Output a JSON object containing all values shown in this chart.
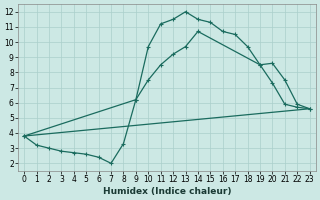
{
  "xlabel": "Humidex (Indice chaleur)",
  "bg_color": "#cce8e4",
  "grid_color": "#aacfcb",
  "line_color": "#1a6b5e",
  "xlim": [
    -0.5,
    23.5
  ],
  "ylim": [
    1.5,
    12.5
  ],
  "xticks": [
    0,
    1,
    2,
    3,
    4,
    5,
    6,
    7,
    8,
    9,
    10,
    11,
    12,
    13,
    14,
    15,
    16,
    17,
    18,
    19,
    20,
    21,
    22,
    23
  ],
  "yticks": [
    2,
    3,
    4,
    5,
    6,
    7,
    8,
    9,
    10,
    11,
    12
  ],
  "curve1_x": [
    0,
    1,
    2,
    3,
    4,
    5,
    6,
    7,
    8,
    9,
    10,
    11,
    12,
    13,
    14,
    15,
    16,
    17,
    18,
    19,
    20,
    21,
    22,
    23
  ],
  "curve1_y": [
    3.8,
    3.2,
    3.0,
    2.8,
    2.7,
    2.6,
    2.4,
    2.0,
    3.3,
    6.2,
    9.7,
    11.2,
    11.5,
    12.0,
    11.5,
    11.3,
    10.7,
    10.5,
    9.7,
    8.5,
    7.3,
    5.9,
    5.7,
    5.6
  ],
  "curve2_x": [
    0,
    9,
    10,
    11,
    12,
    13,
    14,
    19,
    20,
    21,
    22,
    23
  ],
  "curve2_y": [
    3.8,
    6.2,
    7.5,
    8.5,
    9.2,
    9.7,
    10.7,
    8.5,
    8.6,
    7.5,
    5.9,
    5.6
  ],
  "line_x": [
    0,
    23
  ],
  "line_y": [
    3.8,
    5.6
  ]
}
